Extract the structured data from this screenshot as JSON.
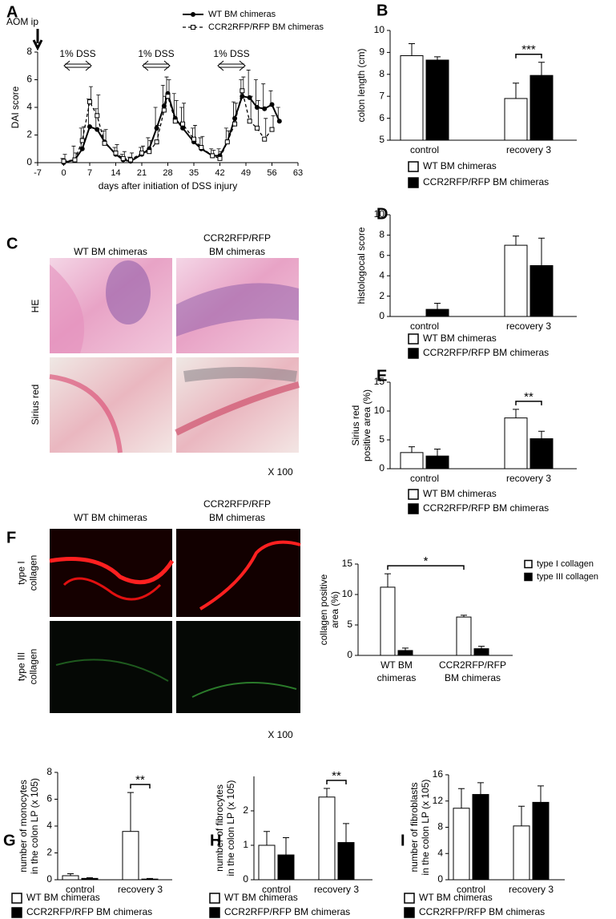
{
  "chart_data": [
    {
      "type": "line",
      "panel": "A",
      "x_label": "days after initiation of DSS injury",
      "y_label": "DAI score",
      "xlim": [
        -7,
        63
      ],
      "xticks": [
        -7,
        0,
        7,
        14,
        21,
        28,
        35,
        42,
        49,
        56,
        63
      ],
      "ylim": [
        0,
        8
      ],
      "yticks": [
        0,
        2,
        4,
        6,
        8
      ],
      "annotations": [
        "AOM ip",
        "1% DSS",
        "1% DSS",
        "1% DSS"
      ],
      "x": [
        0,
        3,
        5,
        7,
        9,
        11,
        14,
        16,
        18,
        21,
        23,
        25,
        27,
        28,
        30,
        32,
        35,
        37,
        40,
        42,
        44,
        46,
        48,
        50,
        52,
        54,
        56,
        58
      ],
      "series": [
        {
          "name": "WT BM chimeras",
          "color": "#000000",
          "style": "solid",
          "marker": "circle",
          "values": [
            0,
            0.2,
            1.0,
            2.6,
            2.4,
            1.5,
            0.6,
            0.2,
            0.1,
            0.6,
            1.0,
            2.5,
            4.1,
            5.0,
            3.2,
            2.5,
            1.5,
            1.0,
            0.5,
            0.5,
            1.5,
            3.2,
            4.8,
            4.7,
            4.0,
            3.9,
            4.2,
            3.0
          ],
          "errors": [
            0.3,
            1.0,
            1.5,
            2.0,
            1.5,
            0.8,
            0.5,
            0.4,
            0.3,
            0.5,
            0.8,
            1.5,
            1.5,
            1.2,
            1.8,
            1.5,
            1.0,
            0.8,
            0.5,
            0.5,
            1.0,
            1.2,
            1.2,
            2.0,
            2.0,
            1.8,
            1.0,
            1.0
          ]
        },
        {
          "name": "CCR2RFP/RFP BM chimeras",
          "color": "#000000",
          "style": "dashed",
          "marker": "square",
          "values": [
            0.1,
            0.2,
            1.6,
            4.4,
            3.4,
            1.4,
            0.7,
            0.3,
            0.2,
            0.7,
            0.8,
            1.5,
            3.8,
            4.8,
            3.0,
            2.8,
            1.7,
            1.1,
            0.5,
            0.3,
            1.5,
            2.8,
            5.2,
            3.0,
            2.5,
            1.7,
            2.4,
            null
          ],
          "errors": [
            0.5,
            0.5,
            1.0,
            1.1,
            1.5,
            1.0,
            0.6,
            0.5,
            0.5,
            0.5,
            0.8,
            1.2,
            1.0,
            1.2,
            1.5,
            1.5,
            1.0,
            0.8,
            0.4,
            0.5,
            0.8,
            1.5,
            1.0,
            1.8,
            2.0,
            1.5,
            1.0,
            null
          ]
        }
      ]
    },
    {
      "type": "bar",
      "panel": "B",
      "y_label": [
        "colon length (cm)"
      ],
      "categories": [
        [
          "control"
        ],
        [
          "recovery 3"
        ]
      ],
      "ylim": [
        5,
        10
      ],
      "yticks": [
        5,
        6,
        7,
        8,
        9,
        10
      ],
      "annotation": "***",
      "series": [
        {
          "name": "WT BM chimeras",
          "color": "#ffffff",
          "values": [
            8.85,
            6.9
          ],
          "errors": [
            0.55,
            0.7
          ]
        },
        {
          "name": "CCR2RFP/RFP BM chimeras",
          "color": "#000000",
          "values": [
            8.65,
            7.95
          ],
          "errors": [
            0.15,
            0.6
          ]
        }
      ]
    },
    {
      "type": "bar",
      "panel": "D",
      "y_label": [
        "histologocal score"
      ],
      "categories": [
        [
          "control"
        ],
        [
          "recovery 3"
        ]
      ],
      "ylim": [
        0,
        10
      ],
      "yticks": [
        0,
        2,
        4,
        6,
        8,
        10
      ],
      "series": [
        {
          "name": "WT BM chimeras",
          "color": "#ffffff",
          "values": [
            0,
            7.0
          ],
          "errors": [
            0,
            0.9
          ]
        },
        {
          "name": "CCR2RFP/RFP BM chimeras",
          "color": "#000000",
          "values": [
            0.7,
            5.0
          ],
          "errors": [
            0.6,
            2.7
          ]
        }
      ]
    },
    {
      "type": "bar",
      "panel": "E",
      "y_label": [
        "Sirius red",
        "positive area (%)"
      ],
      "categories": [
        [
          "control"
        ],
        [
          "recovery 3"
        ]
      ],
      "ylim": [
        0,
        15
      ],
      "yticks": [
        0,
        5,
        10,
        15
      ],
      "annotation": "**",
      "series": [
        {
          "name": "WT BM chimeras",
          "color": "#ffffff",
          "values": [
            2.8,
            8.8
          ],
          "errors": [
            1.0,
            1.5
          ]
        },
        {
          "name": "CCR2RFP/RFP BM chimeras",
          "color": "#000000",
          "values": [
            2.2,
            5.2
          ],
          "errors": [
            1.2,
            1.3
          ]
        }
      ]
    },
    {
      "type": "bar",
      "y_label": [
        "collagen positive",
        "area (%)"
      ],
      "categories": [
        [
          "WT BM",
          "chimeras"
        ],
        [
          "CCR2RFP/RFP",
          "BM chimeras"
        ]
      ],
      "ylim": [
        0,
        15
      ],
      "yticks": [
        0,
        5,
        10,
        15
      ],
      "annotation": "*",
      "series": [
        {
          "name": "type I collagen",
          "color": "#ffffff",
          "values": [
            11.2,
            6.3
          ],
          "errors": [
            2.2,
            0.3
          ]
        },
        {
          "name": "type III collagen",
          "color": "#000000",
          "values": [
            0.8,
            1.1
          ],
          "errors": [
            0.4,
            0.4
          ]
        }
      ]
    },
    {
      "type": "bar",
      "panel": "G",
      "y_label": [
        "number of monocytes",
        "in the colon LP (x 105)"
      ],
      "categories": [
        [
          "control"
        ],
        [
          "recovery 3"
        ]
      ],
      "ylim": [
        0,
        8
      ],
      "yticks": [
        0,
        2,
        4,
        6,
        8
      ],
      "annotation": "**",
      "series": [
        {
          "name": "WT BM chimeras",
          "color": "#ffffff",
          "values": [
            0.3,
            3.6
          ],
          "errors": [
            0.15,
            2.9
          ]
        },
        {
          "name": "CCR2RFP/RFP BM chimeras",
          "color": "#000000",
          "values": [
            0.1,
            0.05
          ],
          "errors": [
            0.05,
            0.05
          ]
        }
      ]
    },
    {
      "type": "bar",
      "panel": "H",
      "y_label": [
        "number of fibrocytes",
        "in the colon LP (x 105)"
      ],
      "categories": [
        [
          "control"
        ],
        [
          "recovery 3"
        ]
      ],
      "ylim": [
        0,
        3
      ],
      "yticks": [
        0,
        1,
        2
      ],
      "annotation": "**",
      "series": [
        {
          "name": "WT BM chimeras",
          "color": "#ffffff",
          "values": [
            1.0,
            2.4
          ],
          "errors": [
            0.4,
            0.25
          ]
        },
        {
          "name": "CCR2RFP/RFP BM chimeras",
          "color": "#000000",
          "values": [
            0.72,
            1.08
          ],
          "errors": [
            0.5,
            0.55
          ]
        }
      ]
    },
    {
      "type": "bar",
      "panel": "I",
      "y_label": [
        "number of fibroblasts",
        "in the colon LP (x 105)"
      ],
      "categories": [
        [
          "control"
        ],
        [
          "recovery 3"
        ]
      ],
      "ylim": [
        0,
        16
      ],
      "yticks": [
        0,
        4,
        8,
        12,
        16
      ],
      "series": [
        {
          "name": "WT BM chimeras",
          "color": "#ffffff",
          "values": [
            10.9,
            8.2
          ],
          "errors": [
            3.0,
            3.0
          ]
        },
        {
          "name": "CCR2RFP/RFP BM chimeras",
          "color": "#000000",
          "values": [
            13.0,
            11.8
          ],
          "errors": [
            1.8,
            2.5
          ]
        }
      ]
    }
  ],
  "micrographs": [
    {
      "panel": "C",
      "columns": [
        [
          "WT BM chimeras"
        ],
        [
          "CCR2RFP/RFP",
          "BM chimeras"
        ]
      ],
      "rows": [
        [
          "HE"
        ],
        [
          "Sirius red"
        ]
      ],
      "magnification": "X 100"
    },
    {
      "panel": "F",
      "columns": [
        [
          "WT BM chimeras"
        ],
        [
          "CCR2RFP/RFP",
          "BM chimeras"
        ]
      ],
      "rows": [
        [
          "type I",
          "collagen"
        ],
        [
          "type III",
          "collagen"
        ]
      ],
      "magnification": "X 100"
    }
  ]
}
